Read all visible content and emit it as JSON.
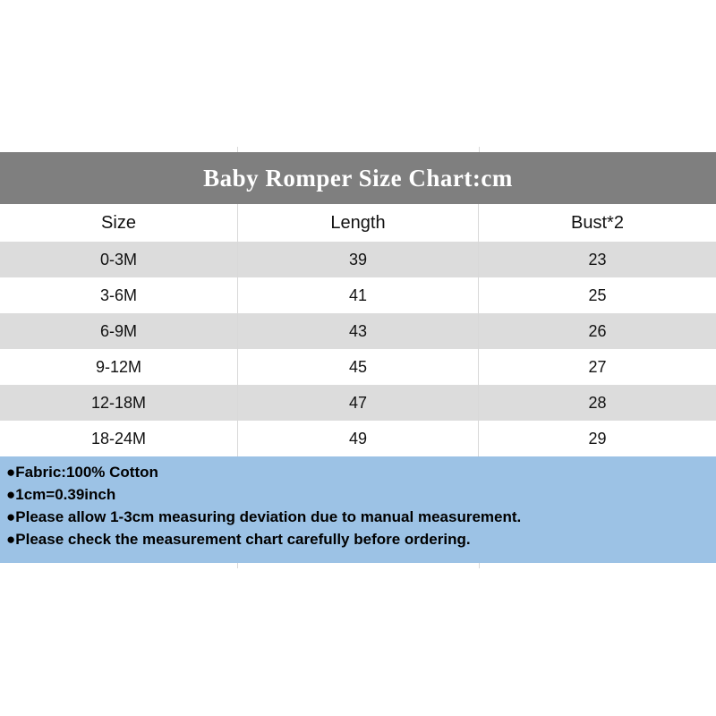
{
  "title_bar": {
    "title": "Baby Romper Size Chart:cm"
  },
  "colors": {
    "title_bg": "#7f7f7f",
    "row_alt": "#dcdcdc",
    "notes_bg": "#9cc2e5",
    "grid": "#d9d9d9"
  },
  "chart_data": {
    "type": "table",
    "title": "Baby Romper Size Chart:cm",
    "unit": "cm",
    "columns": [
      "Size",
      "Length",
      "Bust*2"
    ],
    "rows": [
      [
        "0-3M",
        "39",
        "23"
      ],
      [
        "3-6M",
        "41",
        "25"
      ],
      [
        "6-9M",
        "43",
        "26"
      ],
      [
        "9-12M",
        "45",
        "27"
      ],
      [
        "12-18M",
        "47",
        "28"
      ],
      [
        "18-24M",
        "49",
        "29"
      ]
    ],
    "layout": {
      "alternating_row_shading": true,
      "shaded_rows": [
        0,
        2,
        4
      ],
      "column_dividers_x": [
        265,
        535
      ]
    }
  },
  "notes": {
    "items": [
      "●Fabric:100% Cotton",
      "●1cm=0.39inch",
      "●Please allow 1-3cm measuring deviation due to manual measurement.",
      "●Please check the measurement chart carefully before ordering."
    ]
  }
}
